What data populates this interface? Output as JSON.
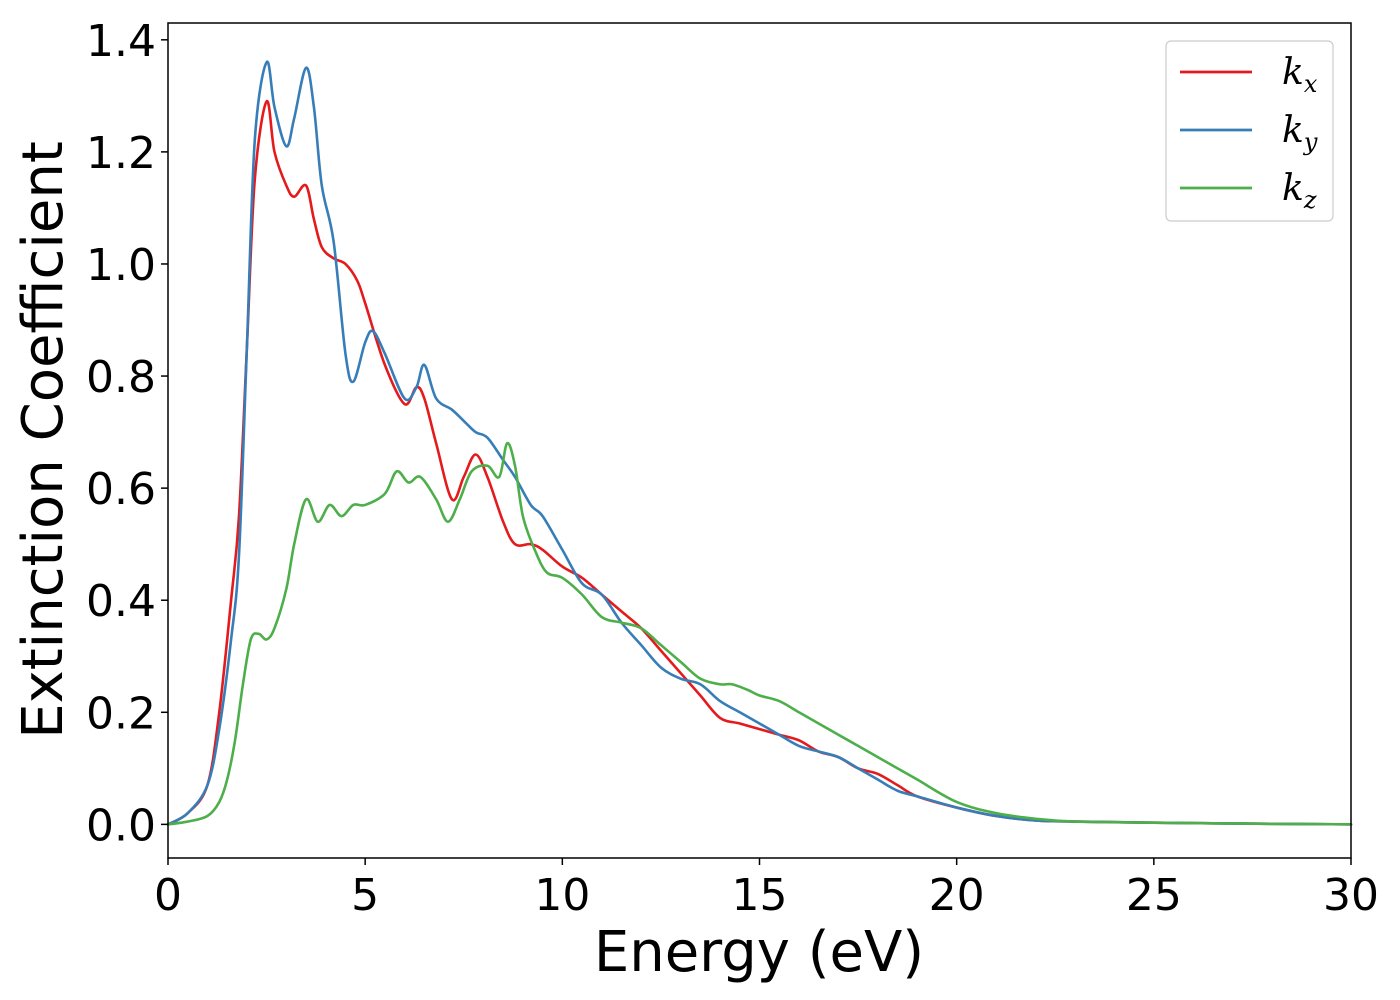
{
  "chart_data": {
    "type": "line",
    "title": "",
    "xlabel": "Energy (eV)",
    "ylabel": "Extinction Coefficient",
    "xlim": [
      0,
      30
    ],
    "ylim": [
      -0.06,
      1.43
    ],
    "xticks": [
      0,
      5,
      10,
      15,
      20,
      25,
      30
    ],
    "xtick_labels": [
      "0",
      "5",
      "10",
      "15",
      "20",
      "25",
      "30"
    ],
    "yticks": [
      0.0,
      0.2,
      0.4,
      0.6,
      0.8,
      1.0,
      1.2,
      1.4
    ],
    "ytick_labels": [
      "0.0",
      "0.2",
      "0.4",
      "0.6",
      "0.8",
      "1.0",
      "1.2",
      "1.4"
    ],
    "grid": false,
    "legend_position": "top-right",
    "series": [
      {
        "name": "k_x",
        "label_base": "k",
        "label_sub": "x",
        "color": "#e41a1c",
        "x": [
          0,
          0.5,
          1.0,
          1.3,
          1.6,
          1.8,
          2.0,
          2.2,
          2.5,
          2.7,
          3.0,
          3.2,
          3.5,
          3.7,
          3.9,
          4.2,
          4.5,
          4.8,
          5.0,
          5.5,
          6.0,
          6.3,
          6.5,
          6.8,
          7.2,
          7.5,
          7.8,
          8.1,
          8.5,
          8.8,
          9.2,
          9.5,
          10.0,
          10.5,
          11.0,
          11.5,
          12.0,
          12.5,
          13.0,
          13.5,
          14.0,
          14.5,
          15.0,
          15.5,
          16.0,
          16.5,
          17.0,
          17.5,
          18.0,
          18.5,
          19.0,
          20.0,
          21.0,
          22.0,
          23.0,
          25.0,
          28.0,
          30.0
        ],
        "y": [
          0.0,
          0.02,
          0.07,
          0.2,
          0.4,
          0.55,
          0.85,
          1.15,
          1.29,
          1.2,
          1.14,
          1.12,
          1.14,
          1.08,
          1.03,
          1.01,
          1.0,
          0.97,
          0.93,
          0.82,
          0.75,
          0.78,
          0.76,
          0.68,
          0.58,
          0.62,
          0.66,
          0.62,
          0.54,
          0.5,
          0.5,
          0.49,
          0.46,
          0.44,
          0.41,
          0.38,
          0.35,
          0.31,
          0.27,
          0.23,
          0.19,
          0.18,
          0.17,
          0.16,
          0.15,
          0.13,
          0.12,
          0.1,
          0.09,
          0.07,
          0.05,
          0.03,
          0.015,
          0.007,
          0.005,
          0.003,
          0.001,
          0.0
        ]
      },
      {
        "name": "k_y",
        "label_base": "k",
        "label_sub": "y",
        "color": "#377eb8",
        "x": [
          0,
          0.5,
          1.0,
          1.3,
          1.6,
          1.8,
          2.0,
          2.2,
          2.5,
          2.7,
          3.0,
          3.2,
          3.5,
          3.7,
          3.9,
          4.2,
          4.5,
          4.7,
          5.0,
          5.2,
          5.5,
          6.0,
          6.3,
          6.5,
          6.8,
          7.2,
          7.5,
          7.8,
          8.1,
          8.5,
          8.8,
          9.2,
          9.5,
          10.0,
          10.5,
          11.0,
          11.5,
          12.0,
          12.5,
          13.0,
          13.5,
          14.0,
          14.5,
          15.0,
          15.5,
          16.0,
          16.5,
          17.0,
          17.5,
          18.0,
          18.5,
          19.0,
          20.0,
          21.0,
          22.0,
          23.0,
          25.0,
          28.0,
          30.0
        ],
        "y": [
          0.0,
          0.02,
          0.07,
          0.17,
          0.33,
          0.48,
          0.85,
          1.22,
          1.36,
          1.28,
          1.21,
          1.26,
          1.35,
          1.28,
          1.14,
          1.04,
          0.84,
          0.79,
          0.86,
          0.88,
          0.84,
          0.76,
          0.78,
          0.82,
          0.76,
          0.74,
          0.72,
          0.7,
          0.69,
          0.65,
          0.62,
          0.57,
          0.55,
          0.49,
          0.43,
          0.41,
          0.36,
          0.32,
          0.28,
          0.26,
          0.25,
          0.22,
          0.2,
          0.18,
          0.16,
          0.14,
          0.13,
          0.12,
          0.1,
          0.08,
          0.06,
          0.05,
          0.03,
          0.015,
          0.007,
          0.005,
          0.003,
          0.001,
          0.0
        ]
      },
      {
        "name": "k_z",
        "label_base": "k",
        "label_sub": "z",
        "color": "#4daf4a",
        "x": [
          0,
          0.5,
          1.0,
          1.3,
          1.5,
          1.7,
          1.9,
          2.1,
          2.3,
          2.5,
          2.7,
          3.0,
          3.2,
          3.5,
          3.8,
          4.1,
          4.4,
          4.7,
          5.0,
          5.5,
          5.8,
          6.1,
          6.4,
          6.8,
          7.1,
          7.4,
          7.7,
          8.1,
          8.4,
          8.6,
          8.8,
          9.0,
          9.3,
          9.6,
          10.0,
          10.5,
          11.0,
          11.5,
          12.0,
          12.5,
          13.0,
          13.5,
          14.0,
          14.3,
          14.7,
          15.0,
          15.5,
          16.0,
          16.5,
          17.0,
          17.5,
          18.0,
          18.5,
          19.0,
          20.0,
          21.0,
          22.0,
          23.0,
          25.0,
          28.0,
          30.0
        ],
        "y": [
          0.0,
          0.005,
          0.015,
          0.04,
          0.08,
          0.15,
          0.25,
          0.33,
          0.34,
          0.33,
          0.35,
          0.42,
          0.5,
          0.58,
          0.54,
          0.57,
          0.55,
          0.57,
          0.57,
          0.59,
          0.63,
          0.61,
          0.62,
          0.58,
          0.54,
          0.58,
          0.63,
          0.64,
          0.62,
          0.68,
          0.64,
          0.55,
          0.49,
          0.45,
          0.44,
          0.41,
          0.37,
          0.36,
          0.35,
          0.32,
          0.29,
          0.26,
          0.25,
          0.25,
          0.24,
          0.23,
          0.22,
          0.2,
          0.18,
          0.16,
          0.14,
          0.12,
          0.1,
          0.08,
          0.04,
          0.02,
          0.01,
          0.005,
          0.003,
          0.001,
          0.0
        ]
      }
    ]
  }
}
